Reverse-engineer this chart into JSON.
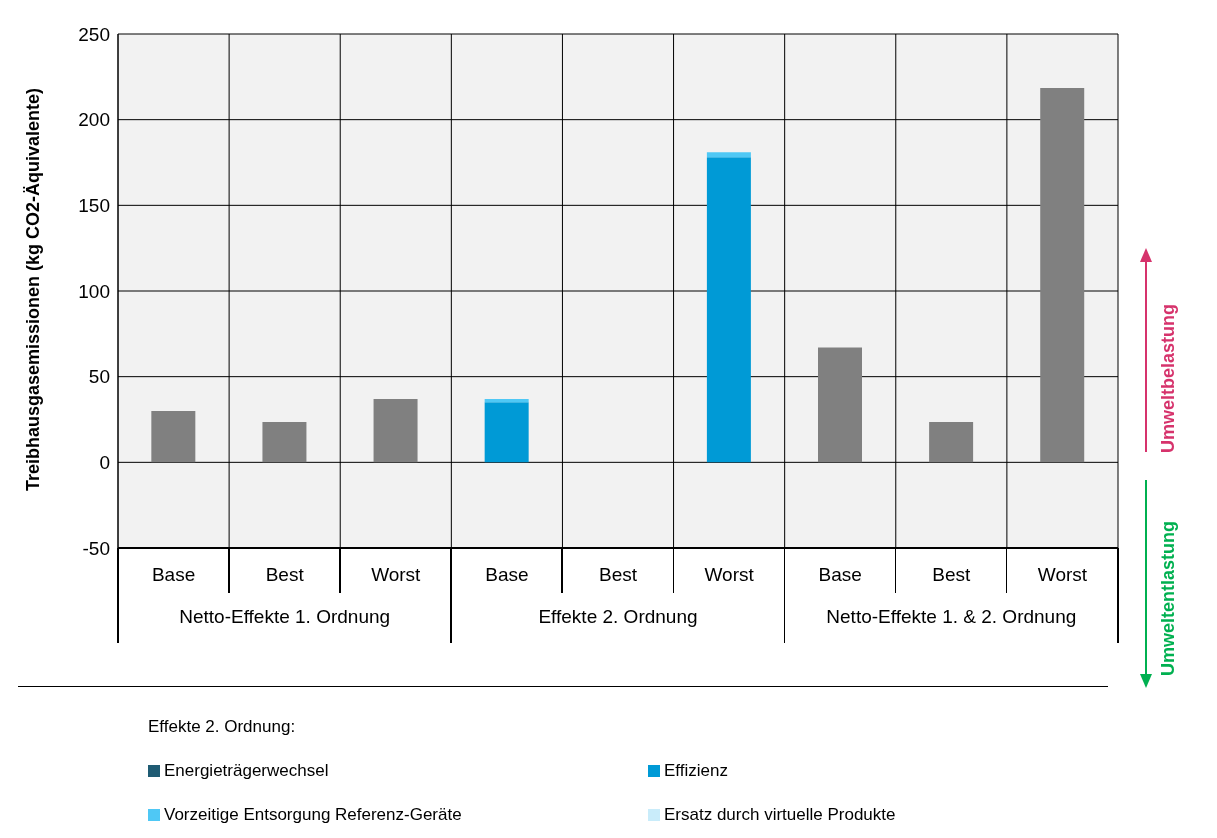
{
  "chart_data": {
    "type": "bar",
    "stacked": true,
    "ylabel": "Treibhausgasemissionen (kg CO2-Äquivalente)",
    "legend_title": "Effekte 2. Ordnung:",
    "legend": "bottom",
    "grid": true,
    "categories": [
      "Base",
      "Best",
      "Worst",
      "Base",
      "Best",
      "Worst",
      "Base",
      "Best",
      "Worst"
    ],
    "ylim": [
      -50,
      250
    ],
    "yticks": [
      -50,
      0,
      50,
      100,
      150,
      200,
      250
    ],
    "series": [
      {
        "color": "#808080",
        "values": [
          30,
          23.5,
          37,
          null,
          null,
          null,
          67,
          23.5,
          218.5
        ]
      },
      {
        "name": "Energieträgerwechsel",
        "color": "#1f5b73",
        "values": [
          null,
          null,
          null,
          null,
          null,
          null,
          null,
          null,
          null
        ]
      },
      {
        "name": "Effizienz",
        "color": "#009ad6",
        "values": [
          null,
          null,
          null,
          35,
          null,
          178,
          null,
          null,
          null
        ]
      },
      {
        "name": "Vorzeitige Entsorgung Referenz-Geräte",
        "color": "#4fc8f5",
        "values": [
          null,
          null,
          null,
          2,
          null,
          3,
          null,
          null,
          null
        ]
      },
      {
        "name": "Ersatz durch virtuelle Produkte",
        "color": "#c9ecfa",
        "values": [
          null,
          null,
          null,
          null,
          null,
          null,
          null,
          null,
          null
        ]
      }
    ],
    "annotations": [
      "Netto-Effekte 1. Ordnung",
      "Effekte 2. Ordnung",
      "Netto-Effekte 1. & 2. Ordnung",
      "Umweltbelastung",
      "Umweltentlastung"
    ]
  }
}
